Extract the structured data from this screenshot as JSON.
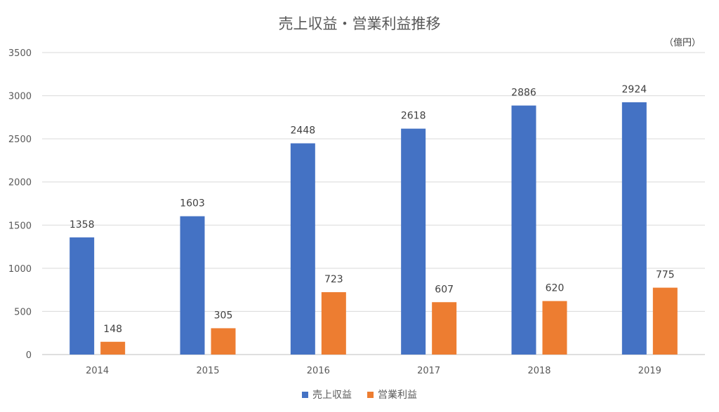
{
  "chart_data": {
    "type": "bar",
    "title": "売上収益・営業利益推移",
    "unit_label": "（億円）",
    "categories": [
      "2014",
      "2015",
      "2016",
      "2017",
      "2018",
      "2019"
    ],
    "series": [
      {
        "name": "売上収益",
        "color": "#4472C4",
        "values": [
          1358,
          1603,
          2448,
          2618,
          2886,
          2924
        ]
      },
      {
        "name": "営業利益",
        "color": "#ED7D31",
        "values": [
          148,
          305,
          723,
          607,
          620,
          775
        ]
      }
    ],
    "ylim": [
      0,
      3500
    ],
    "yticks": [
      0,
      500,
      1000,
      1500,
      2000,
      2500,
      3000,
      3500
    ],
    "grid": true,
    "legend_position": "bottom"
  }
}
